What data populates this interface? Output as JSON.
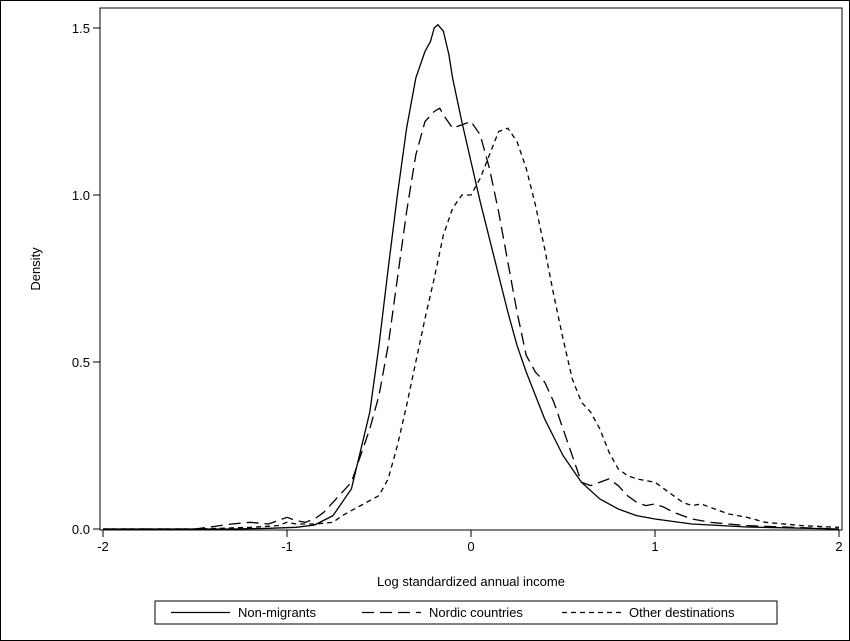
{
  "chart_data": {
    "type": "line",
    "xlabel": "Log standardized annual income",
    "ylabel": "Density",
    "xlim": [
      -2,
      2
    ],
    "ylim": [
      0,
      1.5
    ],
    "x_ticks": [
      -2,
      -1,
      0,
      1,
      2
    ],
    "x_tick_labels": [
      "-2",
      "-1",
      "0",
      "1",
      "2"
    ],
    "y_ticks": [
      0,
      0.5,
      1,
      1.5
    ],
    "y_tick_labels": [
      "0.0",
      "0.5",
      "1.0",
      "1.5"
    ],
    "grid": false,
    "legend_position": "bottom",
    "series": [
      {
        "name": "Non-migrants",
        "style": "solid",
        "x": [
          -2.0,
          -1.6,
          -1.3,
          -1.1,
          -0.95,
          -0.85,
          -0.75,
          -0.65,
          -0.55,
          -0.5,
          -0.45,
          -0.4,
          -0.35,
          -0.3,
          -0.25,
          -0.22,
          -0.2,
          -0.18,
          -0.15,
          -0.12,
          -0.1,
          -0.05,
          0.0,
          0.05,
          0.1,
          0.15,
          0.2,
          0.25,
          0.3,
          0.35,
          0.4,
          0.5,
          0.6,
          0.7,
          0.8,
          0.9,
          1.0,
          1.2,
          1.5,
          2.0
        ],
        "y": [
          0.0,
          0.0,
          0.0,
          0.002,
          0.005,
          0.012,
          0.04,
          0.12,
          0.35,
          0.55,
          0.78,
          1.0,
          1.2,
          1.35,
          1.43,
          1.46,
          1.5,
          1.51,
          1.49,
          1.42,
          1.35,
          1.22,
          1.1,
          0.98,
          0.87,
          0.76,
          0.65,
          0.55,
          0.47,
          0.4,
          0.33,
          0.22,
          0.14,
          0.09,
          0.06,
          0.04,
          0.03,
          0.015,
          0.006,
          0.0
        ]
      },
      {
        "name": "Nordic countries",
        "style": "dashed",
        "x": [
          -2.0,
          -1.5,
          -1.3,
          -1.2,
          -1.1,
          -1.0,
          -0.95,
          -0.9,
          -0.85,
          -0.8,
          -0.75,
          -0.7,
          -0.65,
          -0.6,
          -0.55,
          -0.5,
          -0.45,
          -0.4,
          -0.35,
          -0.3,
          -0.25,
          -0.2,
          -0.17,
          -0.15,
          -0.1,
          -0.05,
          0.0,
          0.05,
          0.1,
          0.15,
          0.2,
          0.25,
          0.3,
          0.35,
          0.4,
          0.45,
          0.5,
          0.55,
          0.6,
          0.65,
          0.7,
          0.75,
          0.8,
          0.85,
          0.9,
          0.95,
          1.0,
          1.05,
          1.1,
          1.2,
          1.3,
          1.5,
          2.0
        ],
        "y": [
          0.0,
          0.0,
          0.015,
          0.02,
          0.015,
          0.035,
          0.025,
          0.02,
          0.03,
          0.05,
          0.08,
          0.11,
          0.14,
          0.22,
          0.3,
          0.4,
          0.55,
          0.75,
          0.95,
          1.12,
          1.22,
          1.25,
          1.26,
          1.24,
          1.2,
          1.21,
          1.22,
          1.18,
          1.08,
          0.95,
          0.8,
          0.65,
          0.52,
          0.47,
          0.44,
          0.38,
          0.3,
          0.22,
          0.14,
          0.13,
          0.14,
          0.15,
          0.13,
          0.1,
          0.08,
          0.07,
          0.075,
          0.065,
          0.05,
          0.03,
          0.02,
          0.01,
          0.0
        ]
      },
      {
        "name": "Other destinations",
        "style": "dotted",
        "x": [
          -2.0,
          -1.5,
          -1.2,
          -1.05,
          -1.0,
          -0.95,
          -0.85,
          -0.75,
          -0.7,
          -0.6,
          -0.5,
          -0.45,
          -0.4,
          -0.35,
          -0.3,
          -0.25,
          -0.2,
          -0.15,
          -0.1,
          -0.05,
          0.0,
          0.05,
          0.1,
          0.15,
          0.2,
          0.25,
          0.3,
          0.35,
          0.4,
          0.45,
          0.5,
          0.55,
          0.6,
          0.65,
          0.7,
          0.75,
          0.8,
          0.85,
          0.9,
          1.0,
          1.05,
          1.1,
          1.15,
          1.2,
          1.25,
          1.3,
          1.4,
          1.5,
          1.6,
          1.8,
          2.0
        ],
        "y": [
          0.0,
          0.0,
          0.005,
          0.01,
          0.02,
          0.015,
          0.015,
          0.02,
          0.04,
          0.07,
          0.1,
          0.15,
          0.25,
          0.37,
          0.5,
          0.63,
          0.75,
          0.88,
          0.96,
          1.0,
          1.0,
          1.05,
          1.12,
          1.19,
          1.2,
          1.16,
          1.08,
          0.97,
          0.84,
          0.7,
          0.57,
          0.45,
          0.38,
          0.35,
          0.3,
          0.23,
          0.18,
          0.16,
          0.15,
          0.14,
          0.12,
          0.1,
          0.08,
          0.07,
          0.075,
          0.065,
          0.045,
          0.035,
          0.02,
          0.01,
          0.005
        ]
      }
    ]
  }
}
